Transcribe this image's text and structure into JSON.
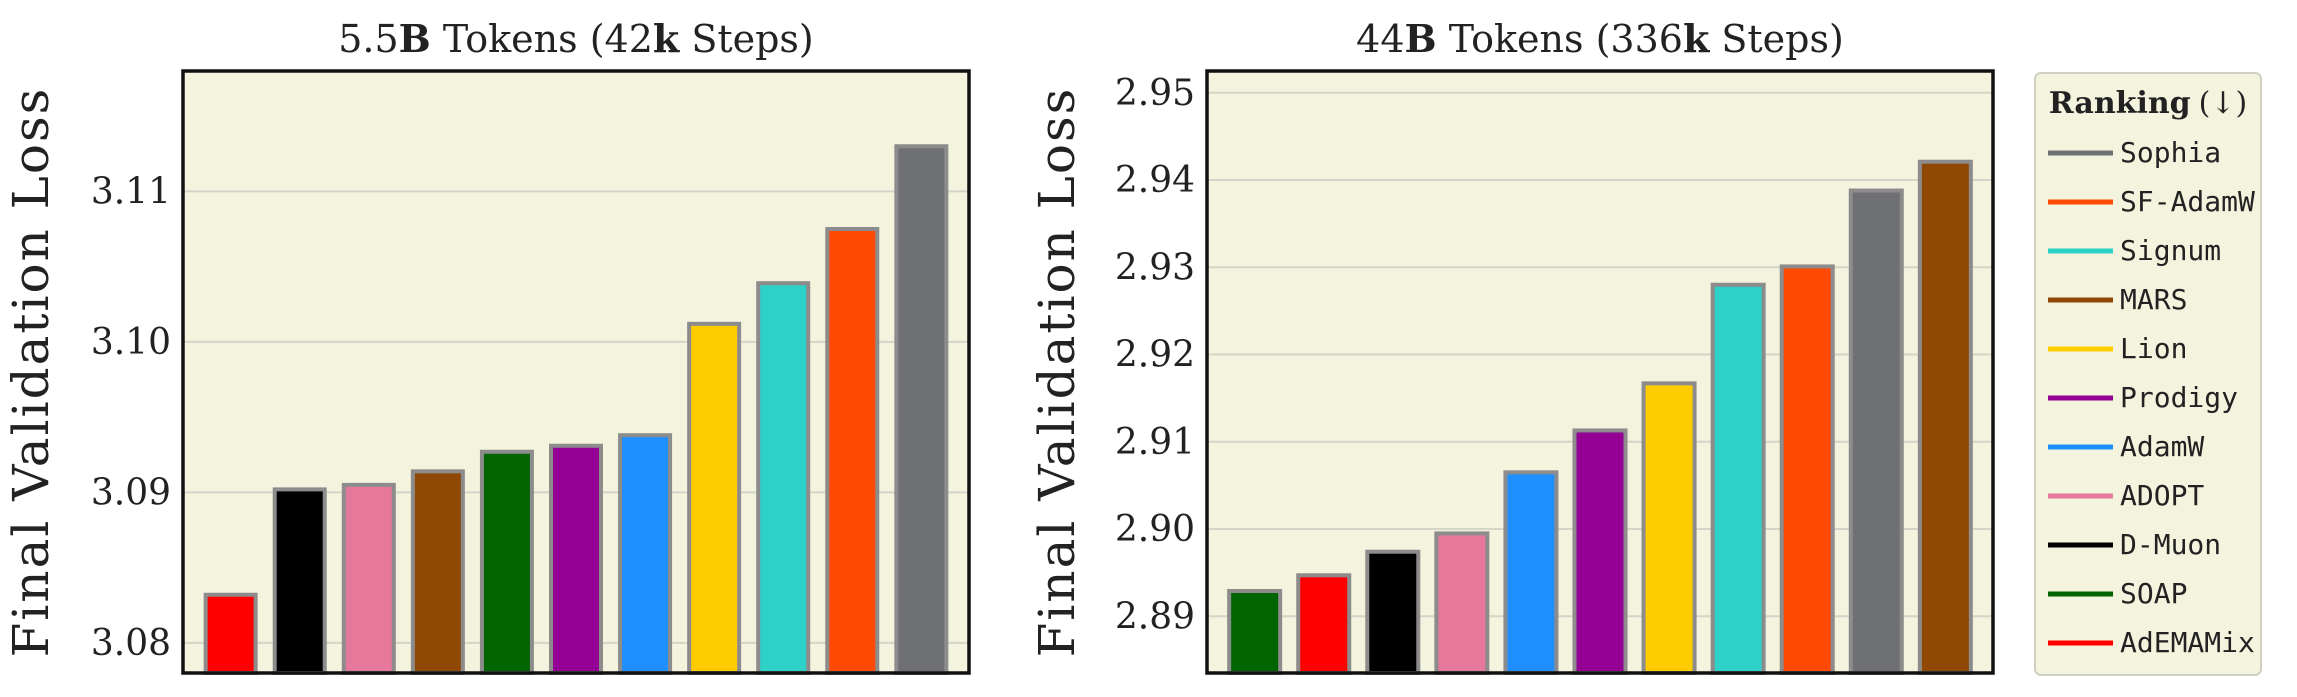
{
  "chart_data": [
    {
      "type": "bar",
      "title_prefix": "5.5",
      "title_bold1": "B",
      "title_mid": " Tokens (42",
      "title_bold2": "k",
      "title_suffix": " Steps)",
      "xlabel": "",
      "ylabel": "Final Validation Loss",
      "ylim": [
        3.078,
        3.118
      ],
      "yticks": [
        3.08,
        3.09,
        3.1,
        3.11
      ],
      "ytick_labels": [
        "3.08",
        "3.09",
        "3.10",
        "3.11"
      ],
      "grid": true,
      "bars": [
        {
          "name": "AdEMAMix",
          "value": 3.0832
        },
        {
          "name": "D-Muon",
          "value": 3.0902
        },
        {
          "name": "ADOPT",
          "value": 3.0905
        },
        {
          "name": "MARS",
          "value": 3.0914
        },
        {
          "name": "SOAP",
          "value": 3.0927
        },
        {
          "name": "Prodigy",
          "value": 3.0931
        },
        {
          "name": "AdamW",
          "value": 3.0938
        },
        {
          "name": "Lion",
          "value": 3.1012
        },
        {
          "name": "Signum",
          "value": 3.1039
        },
        {
          "name": "SF-AdamW",
          "value": 3.1075
        },
        {
          "name": "Sophia",
          "value": 3.113
        }
      ]
    },
    {
      "type": "bar",
      "title_prefix": "44",
      "title_bold1": "B",
      "title_mid": " Tokens (336",
      "title_bold2": "k",
      "title_suffix": " Steps)",
      "xlabel": "",
      "ylabel": "Final Validation Loss",
      "ylim": [
        2.8835,
        2.9525
      ],
      "yticks": [
        2.89,
        2.9,
        2.91,
        2.92,
        2.93,
        2.94,
        2.95
      ],
      "ytick_labels": [
        "2.89",
        "2.90",
        "2.91",
        "2.92",
        "2.93",
        "2.94",
        "2.95"
      ],
      "grid": true,
      "bars": [
        {
          "name": "SOAP",
          "value": 2.8929
        },
        {
          "name": "AdEMAMix",
          "value": 2.8947
        },
        {
          "name": "D-Muon",
          "value": 2.8974
        },
        {
          "name": "ADOPT",
          "value": 2.8995
        },
        {
          "name": "AdamW",
          "value": 2.9065
        },
        {
          "name": "Prodigy",
          "value": 2.9113
        },
        {
          "name": "Lion",
          "value": 2.9167
        },
        {
          "name": "Signum",
          "value": 2.928
        },
        {
          "name": "SF-AdamW",
          "value": 2.9301
        },
        {
          "name": "Sophia",
          "value": 2.9388
        },
        {
          "name": "MARS",
          "value": 2.9421
        }
      ]
    }
  ],
  "legend": {
    "title": "Ranking",
    "title_arrow": "(↓)",
    "placement": "right",
    "items": [
      {
        "label": "Sophia",
        "color": "#6e7073"
      },
      {
        "label": "SF-AdamW",
        "color": "#ff4a05"
      },
      {
        "label": "Signum",
        "color": "#2ed1c8"
      },
      {
        "label": "MARS",
        "color": "#8f4905"
      },
      {
        "label": "Lion",
        "color": "#ffcc00"
      },
      {
        "label": "Prodigy",
        "color": "#940094"
      },
      {
        "label": "AdamW",
        "color": "#1f8fff"
      },
      {
        "label": "ADOPT",
        "color": "#e6789b"
      },
      {
        "label": "D-Muon",
        "color": "#000000"
      },
      {
        "label": "SOAP",
        "color": "#006400"
      },
      {
        "label": "AdEMAMix",
        "color": "#ff0000"
      }
    ]
  },
  "colors": {
    "plot_background": "#f4f3de",
    "grid": "#d4d4c8",
    "bar_edge": "#8c8c8c",
    "axis": "#111111",
    "legend_background": "#f4f3de",
    "legend_edge": "#cfcfc4"
  }
}
